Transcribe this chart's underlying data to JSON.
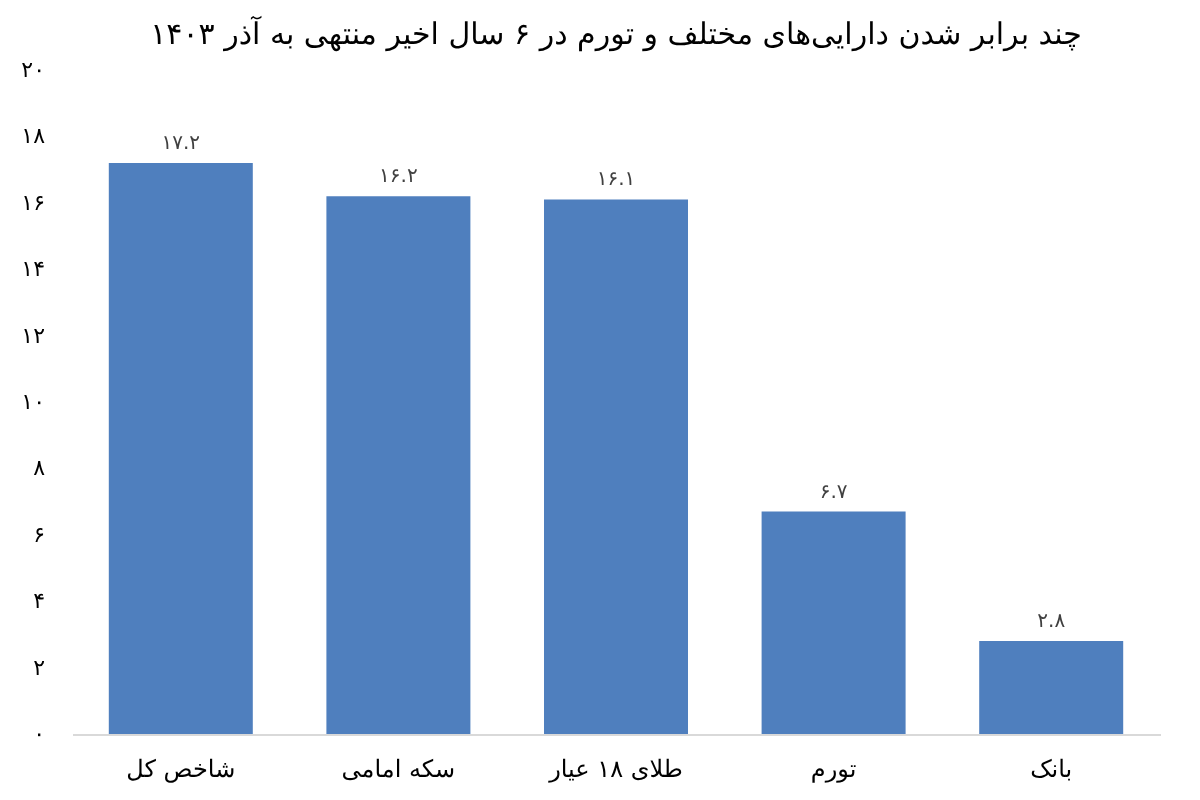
{
  "chart_data": {
    "type": "bar",
    "title": "چند برابر شدن دارایی‌های مختلف و تورم در ۶ سال اخیر منتهی به آذر ۱۴۰۳",
    "categories": [
      "شاخص کل",
      "سکه امامی",
      "طلای ۱۸ عیار",
      "تورم",
      "بانک"
    ],
    "values": [
      17.2,
      16.2,
      16.1,
      6.7,
      2.8
    ],
    "value_labels": [
      "۱۷.۲",
      "۱۶.۲",
      "۱۶.۱",
      "۶.۷",
      "۲.۸"
    ],
    "color": "#4f7fbe",
    "ylim": [
      0,
      20
    ],
    "yticks": [
      {
        "value": 0,
        "label": "۰"
      },
      {
        "value": 2,
        "label": "۲"
      },
      {
        "value": 4,
        "label": "۴"
      },
      {
        "value": 6,
        "label": "۶"
      },
      {
        "value": 8,
        "label": "۸"
      },
      {
        "value": 10,
        "label": "۱۰"
      },
      {
        "value": 12,
        "label": "۱۲"
      },
      {
        "value": 14,
        "label": "۱۴"
      },
      {
        "value": 16,
        "label": "۱۶"
      },
      {
        "value": 18,
        "label": "۱۸"
      },
      {
        "value": 20,
        "label": "۲۰"
      }
    ],
    "grid": false
  }
}
